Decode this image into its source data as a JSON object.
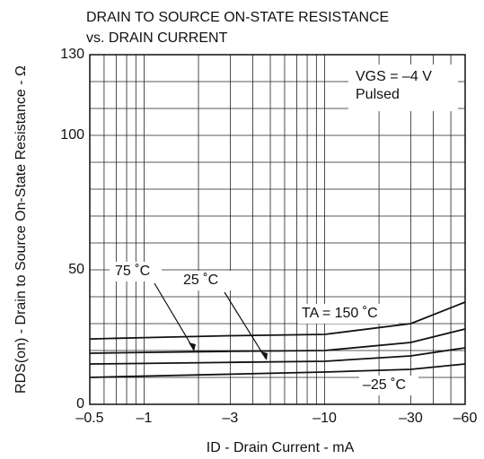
{
  "chart_data": {
    "type": "line",
    "title": "DRAIN TO SOURCE ON-STATE RESISTANCE",
    "subtitle": "vs. DRAIN CURRENT",
    "x_label": "ID - Drain Current - mA",
    "y_label": "RDS(on) - Drain to Source On-State Resistance - Ω",
    "annotations": [
      "VGS = –4 V",
      "Pulsed"
    ],
    "x": [
      -0.5,
      -1,
      -3,
      -10,
      -30,
      -60
    ],
    "series": [
      {
        "name": "TA = 150 ˚C",
        "color": "#111111",
        "values": [
          24.3,
          24.8,
          25.5,
          26,
          30,
          38
        ]
      },
      {
        "name": "75 ˚C",
        "color": "#111111",
        "values": [
          19,
          19.3,
          19.7,
          20,
          23,
          28
        ]
      },
      {
        "name": "25 ˚C",
        "color": "#111111",
        "values": [
          15,
          15.2,
          15.6,
          16,
          18,
          21
        ]
      },
      {
        "name": "–25 ˚C",
        "color": "#111111",
        "values": [
          10,
          10.5,
          11.2,
          12,
          13,
          15
        ]
      }
    ],
    "xlog": true,
    "xlim": [
      -0.5,
      -60
    ],
    "xticks": [
      {
        "value": -0.5,
        "label": "–0.5"
      },
      {
        "value": -1,
        "label": "–1"
      },
      {
        "value": -3,
        "label": "–3"
      },
      {
        "value": -10,
        "label": "–10"
      },
      {
        "value": -30,
        "label": "–30"
      },
      {
        "value": -60,
        "label": "–60"
      }
    ],
    "xgrid": [
      -0.6,
      -0.7,
      -0.8,
      -0.9,
      -2,
      -4,
      -5,
      -6,
      -7,
      -8,
      -9,
      -20,
      -40,
      -50
    ],
    "ylim": [
      0,
      130
    ],
    "yticks": [
      0,
      50,
      100,
      130
    ],
    "ygrid": [
      10,
      20,
      30,
      40,
      60,
      70,
      80,
      90,
      110,
      120
    ],
    "grid": true
  }
}
